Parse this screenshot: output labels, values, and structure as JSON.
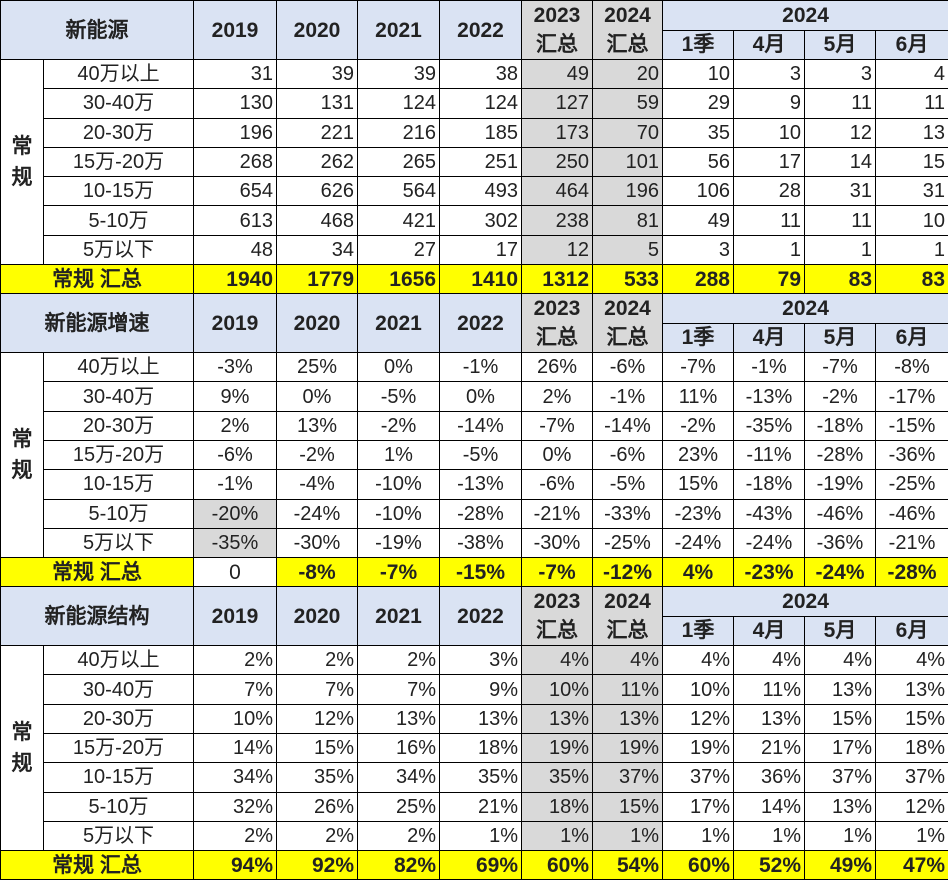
{
  "colors": {
    "header_bg": "#dae3f3",
    "highlight_gray": "#d9d9d9",
    "total_yellow": "#ffff00"
  },
  "columns": {
    "years": [
      "2019",
      "2020",
      "2021",
      "2022"
    ],
    "summary": [
      {
        "year": "2023",
        "sub": "汇总"
      },
      {
        "year": "2024",
        "sub": "汇总"
      }
    ],
    "group_year": "2024",
    "months": [
      "1季",
      "4月",
      "5月",
      "6月"
    ]
  },
  "row_group_label": "常规",
  "row_labels": [
    "40万以上",
    "30-40万",
    "20-30万",
    "15万-20万",
    "10-15万",
    "5-10万",
    "5万以下"
  ],
  "sections": [
    {
      "title": "新能源",
      "align": "right",
      "shade_summary": true,
      "rows": [
        [
          "31",
          "39",
          "39",
          "38",
          "49",
          "20",
          "10",
          "3",
          "3",
          "4"
        ],
        [
          "130",
          "131",
          "124",
          "124",
          "127",
          "59",
          "29",
          "9",
          "11",
          "11"
        ],
        [
          "196",
          "221",
          "216",
          "185",
          "173",
          "70",
          "35",
          "10",
          "12",
          "13"
        ],
        [
          "268",
          "262",
          "265",
          "251",
          "250",
          "101",
          "56",
          "17",
          "14",
          "15"
        ],
        [
          "654",
          "626",
          "564",
          "493",
          "464",
          "196",
          "106",
          "28",
          "31",
          "31"
        ],
        [
          "613",
          "468",
          "421",
          "302",
          "238",
          "81",
          "49",
          "11",
          "11",
          "10"
        ],
        [
          "48",
          "34",
          "27",
          "17",
          "12",
          "5",
          "3",
          "1",
          "1",
          "1"
        ]
      ],
      "total_label": "常规 汇总",
      "total": [
        "1940",
        "1779",
        "1656",
        "1410",
        "1312",
        "533",
        "288",
        "79",
        "83",
        "83"
      ]
    },
    {
      "title": "新能源增速",
      "align": "center",
      "shade_summary": false,
      "rows": [
        [
          "-3%",
          "25%",
          "0%",
          "-1%",
          "26%",
          "-6%",
          "-7%",
          "-1%",
          "-7%",
          "-8%"
        ],
        [
          "9%",
          "0%",
          "-5%",
          "0%",
          "2%",
          "-1%",
          "11%",
          "-13%",
          "-2%",
          "-17%"
        ],
        [
          "2%",
          "13%",
          "-2%",
          "-14%",
          "-7%",
          "-14%",
          "-2%",
          "-35%",
          "-18%",
          "-15%"
        ],
        [
          "-6%",
          "-2%",
          "1%",
          "-5%",
          "0%",
          "-6%",
          "23%",
          "-11%",
          "-28%",
          "-36%"
        ],
        [
          "-1%",
          "-4%",
          "-10%",
          "-13%",
          "-6%",
          "-5%",
          "15%",
          "-18%",
          "-19%",
          "-25%"
        ],
        [
          "-20%",
          "-24%",
          "-10%",
          "-28%",
          "-21%",
          "-33%",
          "-23%",
          "-43%",
          "-46%",
          "-46%"
        ],
        [
          "-35%",
          "-30%",
          "-19%",
          "-38%",
          "-30%",
          "-25%",
          "-24%",
          "-24%",
          "-36%",
          "-21%"
        ]
      ],
      "total_label": "常规 汇总",
      "total": [
        "0",
        "-8%",
        "-7%",
        "-15%",
        "-7%",
        "-12%",
        "4%",
        "-23%",
        "-24%",
        "-28%"
      ]
    },
    {
      "title": "新能源结构",
      "align": "right",
      "shade_summary": true,
      "rows": [
        [
          "2%",
          "2%",
          "2%",
          "3%",
          "4%",
          "4%",
          "4%",
          "4%",
          "4%",
          "4%"
        ],
        [
          "7%",
          "7%",
          "7%",
          "9%",
          "10%",
          "11%",
          "10%",
          "11%",
          "13%",
          "13%"
        ],
        [
          "10%",
          "12%",
          "13%",
          "13%",
          "13%",
          "13%",
          "12%",
          "13%",
          "15%",
          "15%"
        ],
        [
          "14%",
          "15%",
          "16%",
          "18%",
          "19%",
          "19%",
          "19%",
          "21%",
          "17%",
          "18%"
        ],
        [
          "34%",
          "35%",
          "34%",
          "35%",
          "35%",
          "37%",
          "37%",
          "36%",
          "37%",
          "37%"
        ],
        [
          "32%",
          "26%",
          "25%",
          "21%",
          "18%",
          "15%",
          "17%",
          "14%",
          "13%",
          "12%"
        ],
        [
          "2%",
          "2%",
          "2%",
          "1%",
          "1%",
          "1%",
          "1%",
          "1%",
          "1%",
          "1%"
        ]
      ],
      "total_label": "常规 汇总",
      "total": [
        "94%",
        "92%",
        "82%",
        "69%",
        "60%",
        "54%",
        "60%",
        "52%",
        "49%",
        "47%"
      ]
    }
  ]
}
